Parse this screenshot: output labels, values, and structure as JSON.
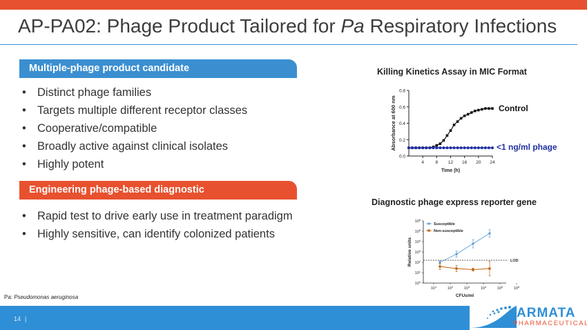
{
  "title": {
    "prefix": "AP-PA02: Phage Product Tailored for ",
    "italic": "Pa",
    "suffix": " Respiratory Infections"
  },
  "section1": {
    "heading": "Multiple-phage product candidate",
    "bullets": [
      "Distinct phage families",
      "Targets multiple different receptor classes",
      "Cooperative/compatible",
      "Broadly active against clinical isolates",
      "Highly potent"
    ]
  },
  "section2": {
    "heading": "Engineering phage-based diagnostic",
    "bullets": [
      "Rapid test to drive early use in treatment paradigm",
      "Highly sensitive, can identify colonized patients"
    ]
  },
  "bullet_glyph": "•",
  "chart_data": [
    {
      "type": "line",
      "title": "Killing Kinetics Assay in MIC Format",
      "xlabel": "Time (h)",
      "ylabel": "Absorbance at 600 nm",
      "xlim": [
        0,
        24
      ],
      "ylim": [
        0.0,
        0.8
      ],
      "xticks": [
        4,
        8,
        12,
        16,
        20,
        24
      ],
      "yticks": [
        0.0,
        0.2,
        0.4,
        0.6,
        0.8
      ],
      "ytick_labels": [
        "0.0",
        "0.2",
        "0.4",
        "0.6",
        "0.8"
      ],
      "series": [
        {
          "name": "Control",
          "color": "#111111",
          "x": [
            0,
            1,
            2,
            3,
            4,
            5,
            6,
            7,
            8,
            9,
            10,
            11,
            12,
            13,
            14,
            15,
            16,
            17,
            18,
            19,
            20,
            21,
            22,
            23,
            24
          ],
          "y": [
            0.1,
            0.1,
            0.1,
            0.1,
            0.1,
            0.1,
            0.1,
            0.11,
            0.13,
            0.15,
            0.19,
            0.25,
            0.31,
            0.38,
            0.42,
            0.46,
            0.49,
            0.51,
            0.53,
            0.55,
            0.56,
            0.57,
            0.58,
            0.58,
            0.58
          ]
        },
        {
          "name": "<1 ng/ml phage",
          "color": "#1f2fa3",
          "x": [
            0,
            1,
            2,
            3,
            4,
            5,
            6,
            7,
            8,
            9,
            10,
            11,
            12,
            13,
            14,
            15,
            16,
            17,
            18,
            19,
            20,
            21,
            22,
            23,
            24
          ],
          "y": [
            0.1,
            0.1,
            0.1,
            0.1,
            0.1,
            0.1,
            0.1,
            0.1,
            0.1,
            0.1,
            0.1,
            0.1,
            0.1,
            0.1,
            0.1,
            0.1,
            0.1,
            0.1,
            0.1,
            0.1,
            0.1,
            0.1,
            0.1,
            0.1,
            0.1
          ]
        }
      ]
    },
    {
      "type": "line",
      "title": "Diagnostic phage express reporter gene",
      "xlabel": "CFUs/ml",
      "ylabel": "Relative units",
      "xscale": "log",
      "yscale": "log",
      "xlim": [
        1,
        9
      ],
      "ylim": [
        0,
        6
      ],
      "x_tick_bases": [
        "10",
        "10",
        "10",
        "10",
        "10",
        "10"
      ],
      "x_tick_exps": [
        "1",
        "2",
        "3",
        "4",
        "5",
        "6"
      ],
      "y_tick_bases": [
        "10",
        "10",
        "10",
        "10",
        "10",
        "10",
        "10"
      ],
      "y_tick_exps": [
        "0",
        "1",
        "2",
        "3",
        "4",
        "5",
        "6"
      ],
      "lod_label": "LOD",
      "lod_value": 2.2,
      "series": [
        {
          "name": "Susceptible",
          "color": "#5b9bd5",
          "x": [
            2,
            3,
            4,
            5
          ],
          "y": [
            2.0,
            2.8,
            3.8,
            4.8
          ],
          "err": [
            0.15,
            0.3,
            0.4,
            0.35
          ]
        },
        {
          "name": "Non-susceptible",
          "color": "#c0620c",
          "x": [
            2,
            3,
            4,
            5
          ],
          "y": [
            1.6,
            1.4,
            1.3,
            1.4
          ],
          "err": [
            0.3,
            0.3,
            0.15,
            0.7
          ]
        }
      ]
    }
  ],
  "footnote": {
    "prefix": "Pa: ",
    "species": "Pseudomonas aeruginosa"
  },
  "page_number": "14",
  "page_separator": "|",
  "logo": {
    "name": "ARMATA",
    "sub": "PHARMACEUTICALS"
  },
  "colors": {
    "accent_orange": "#e8512f",
    "accent_blue": "#3b8fd0",
    "footer_blue": "#2f8fd6"
  }
}
